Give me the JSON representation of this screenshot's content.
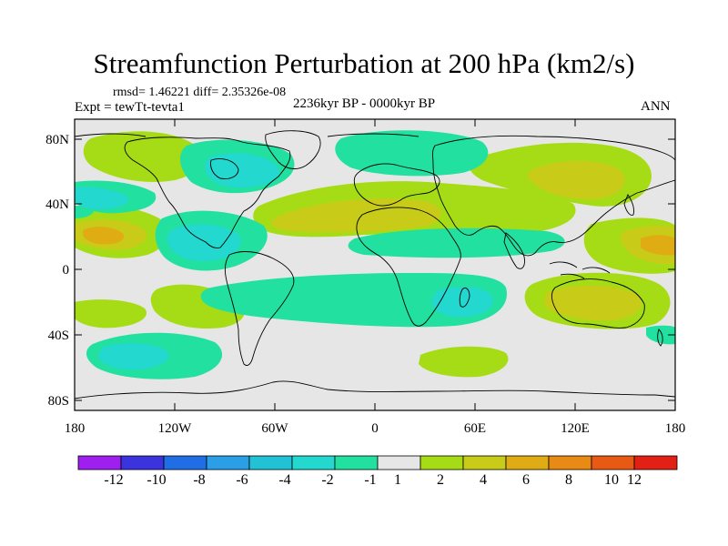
{
  "title": "Streamfunction Perturbation at 200 hPa (km2/s)",
  "stats": "rmsd= 1.46221 diff= 2.35326e-08",
  "expt": "Expt = tewTt-tevta1",
  "center_label": "2236kyr BP - 0000kyr BP",
  "season": "ANN",
  "lat_labels": [
    "80N",
    "40N",
    "0",
    "40S",
    "80S"
  ],
  "lon_labels": [
    "180",
    "120W",
    "60W",
    "0",
    "60E",
    "120E",
    "180"
  ],
  "colorbar": {
    "labels": [
      "-12",
      "-10",
      "-8",
      "-6",
      "-4",
      "-2",
      "-1",
      "1",
      "2",
      "4",
      "6",
      "8",
      "10",
      "12"
    ],
    "colors": [
      "#9f1ff0",
      "#3b33de",
      "#1f6ee6",
      "#2a9ee6",
      "#22c2d6",
      "#22d8cf",
      "#22e0a0",
      "#e6e6e6",
      "#a6dc16",
      "#c8cc18",
      "#e0ac14",
      "#e88a14",
      "#e85a14",
      "#e22014"
    ]
  }
}
